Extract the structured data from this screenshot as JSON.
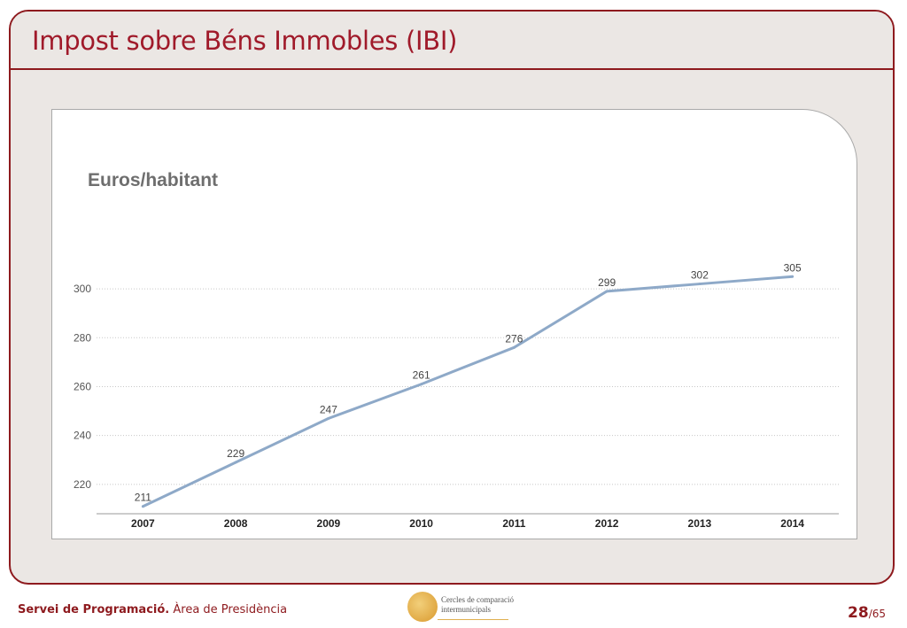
{
  "slide": {
    "title": "Impost sobre Béns Immobles (IBI)"
  },
  "footer": {
    "org_bold": "Servei de Programació.",
    "org_normal": " Àrea de Presidència",
    "logo_line1": "Cercles de comparació",
    "logo_line2": "intermunicipals",
    "page_current": "28",
    "page_total": "/65"
  },
  "colors": {
    "accent": "#8e1a1e",
    "title": "#a01a2a",
    "line": "#8ea9c8",
    "panel_bg": "#ebe7e4"
  },
  "chart_data": {
    "type": "line",
    "title": "Euros/habitant",
    "categories": [
      "2007",
      "2008",
      "2009",
      "2010",
      "2011",
      "2012",
      "2013",
      "2014"
    ],
    "values": [
      211,
      229,
      247,
      261,
      276,
      299,
      302,
      305
    ],
    "data_labels": [
      "211",
      "229",
      "247",
      "261",
      "276",
      "299",
      "302",
      "305"
    ],
    "ylim": [
      208,
      308
    ],
    "yticks": [
      220,
      240,
      260,
      280,
      300
    ],
    "grid": true,
    "xlabel": "",
    "ylabel": ""
  }
}
